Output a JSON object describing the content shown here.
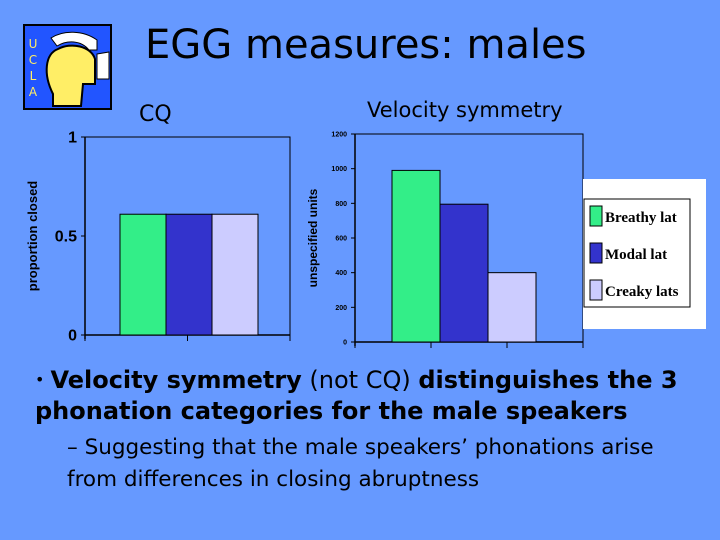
{
  "title": "EGG measures: males",
  "logo": {
    "letters": [
      "U",
      "C",
      "L",
      "A"
    ]
  },
  "charts_header": {
    "cq": "CQ",
    "vs": "Velocity symmetry"
  },
  "chart_data": [
    {
      "type": "bar",
      "title": "CQ",
      "ylabel": "proportion closed",
      "ylim": [
        0,
        1
      ],
      "yticks": [
        0,
        0.5,
        1
      ],
      "ytick_labels": [
        "0",
        "0.5",
        "1"
      ],
      "series": [
        {
          "name": "Breathy lat",
          "color": "#33ee88",
          "values": [
            0.61
          ]
        },
        {
          "name": "Modal lat",
          "color": "#3333cc",
          "values": [
            0.61
          ]
        },
        {
          "name": "Creaky lats",
          "color": "#ccccff",
          "values": [
            0.61
          ]
        }
      ]
    },
    {
      "type": "bar",
      "title": "Velocity symmetry",
      "ylabel": "unspecified units",
      "ylim": [
        0,
        1200
      ],
      "yticks": [
        0,
        200,
        400,
        600,
        800,
        1000,
        1200
      ],
      "ytick_labels": [
        "0",
        "200",
        "400",
        "600",
        "800",
        "1000",
        "1200"
      ],
      "series": [
        {
          "name": "Breathy lat",
          "color": "#33ee88",
          "values": [
            990
          ]
        },
        {
          "name": "Modal lat",
          "color": "#3333cc",
          "values": [
            795
          ]
        },
        {
          "name": "Creaky lats",
          "color": "#ccccff",
          "values": [
            400
          ]
        }
      ]
    }
  ],
  "legend": {
    "items": [
      "Breathy lat",
      "Modal lat",
      "Creaky lats"
    ]
  },
  "bullets": {
    "main_part1": "Velocity symmetry",
    "main_part2": " (not CQ) ",
    "main_part3": "distinguishes the 3 phonation categories for the male speakers",
    "sub": "Suggesting that the male speakers’ phonations arise from differences in closing abruptness"
  }
}
